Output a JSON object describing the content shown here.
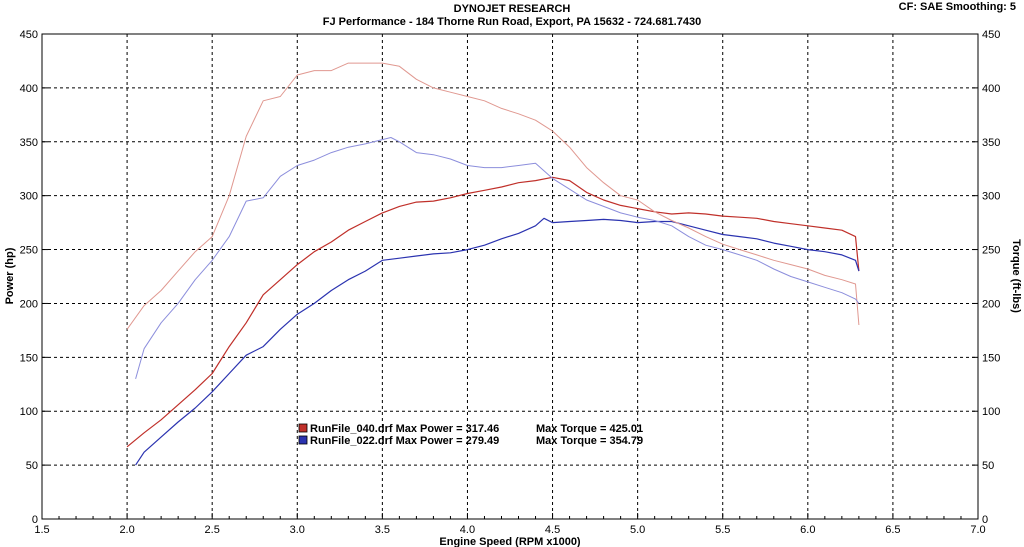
{
  "header": {
    "title": "DYNOJET RESEARCH",
    "subtitle": "FJ Performance - 184 Thorne Run Road, Export, PA  15632 - 724.681.7430",
    "cf": "CF: SAE  Smoothing: 5"
  },
  "chart_data": {
    "type": "line",
    "xlabel": "Engine Speed (RPM x1000)",
    "ylabel_left": "Power (hp)",
    "ylabel_right": "Torque (ft-lbs)",
    "xlim": [
      1.5,
      7.0
    ],
    "ylim": [
      0,
      450
    ],
    "x_ticks": [
      "1.5",
      "2.0",
      "2.5",
      "3.0",
      "3.5",
      "4.0",
      "4.5",
      "5.0",
      "5.5",
      "6.0",
      "6.5",
      "7.0"
    ],
    "y_ticks": [
      "0",
      "50",
      "100",
      "150",
      "200",
      "250",
      "300",
      "350",
      "400",
      "450"
    ],
    "grid": true,
    "legend_position": "lower-left",
    "legend": [
      {
        "label": "RunFile_040.drf Max Power = 317.46",
        "torque_label": "Max Torque = 425.01",
        "color": "#c0302a"
      },
      {
        "label": "RunFile_022.drf Max Power = 279.49",
        "torque_label": "Max Torque = 354.79",
        "color": "#2b33b0"
      }
    ],
    "series": [
      {
        "run": "RunFile_040.drf",
        "measure": "power",
        "color": "#c0302a",
        "faint": false,
        "x": [
          2.0,
          2.1,
          2.2,
          2.3,
          2.4,
          2.5,
          2.6,
          2.7,
          2.8,
          2.9,
          3.0,
          3.1,
          3.2,
          3.3,
          3.4,
          3.5,
          3.6,
          3.7,
          3.8,
          3.9,
          4.0,
          4.1,
          4.2,
          4.3,
          4.4,
          4.5,
          4.6,
          4.7,
          4.8,
          4.9,
          5.0,
          5.1,
          5.2,
          5.3,
          5.4,
          5.5,
          5.6,
          5.7,
          5.8,
          5.9,
          6.0,
          6.1,
          6.2,
          6.28,
          6.3
        ],
        "y": [
          67,
          80,
          92,
          106,
          120,
          135,
          160,
          182,
          208,
          222,
          236,
          248,
          257,
          268,
          276,
          284,
          290,
          294,
          295,
          298,
          302,
          305,
          308,
          312,
          314,
          317,
          314,
          303,
          296,
          291,
          288,
          285,
          283,
          284,
          283,
          281,
          280,
          279,
          276,
          274,
          272,
          270,
          268,
          262,
          230
        ]
      },
      {
        "run": "RunFile_022.drf",
        "measure": "power",
        "color": "#2b33b0",
        "faint": false,
        "x": [
          2.05,
          2.1,
          2.2,
          2.3,
          2.4,
          2.5,
          2.6,
          2.7,
          2.8,
          2.9,
          3.0,
          3.1,
          3.2,
          3.3,
          3.4,
          3.5,
          3.6,
          3.7,
          3.8,
          3.9,
          4.0,
          4.1,
          4.2,
          4.3,
          4.4,
          4.45,
          4.5,
          4.6,
          4.7,
          4.8,
          4.9,
          5.0,
          5.1,
          5.2,
          5.3,
          5.4,
          5.5,
          5.6,
          5.7,
          5.8,
          5.9,
          6.0,
          6.1,
          6.2,
          6.28,
          6.3
        ],
        "y": [
          50,
          62,
          76,
          90,
          103,
          118,
          135,
          152,
          160,
          176,
          190,
          200,
          212,
          222,
          230,
          240,
          242,
          244,
          246,
          247,
          250,
          254,
          260,
          265,
          272,
          279,
          275,
          276,
          277,
          278,
          277,
          275,
          276,
          276,
          272,
          268,
          264,
          262,
          260,
          256,
          253,
          250,
          248,
          245,
          240,
          230
        ]
      },
      {
        "run": "RunFile_040.drf",
        "measure": "torque",
        "color": "#e09890",
        "faint": true,
        "x": [
          2.0,
          2.1,
          2.2,
          2.3,
          2.4,
          2.5,
          2.6,
          2.7,
          2.8,
          2.9,
          3.0,
          3.1,
          3.2,
          3.3,
          3.4,
          3.5,
          3.6,
          3.7,
          3.8,
          3.9,
          4.0,
          4.1,
          4.2,
          4.3,
          4.4,
          4.5,
          4.6,
          4.7,
          4.8,
          4.9,
          5.0,
          5.1,
          5.2,
          5.3,
          5.4,
          5.5,
          5.6,
          5.7,
          5.8,
          5.9,
          6.0,
          6.1,
          6.2,
          6.28,
          6.3
        ],
        "y": [
          176,
          198,
          212,
          230,
          248,
          262,
          300,
          355,
          388,
          392,
          412,
          416,
          416,
          423,
          423,
          423,
          420,
          408,
          400,
          396,
          392,
          388,
          381,
          376,
          370,
          360,
          345,
          326,
          312,
          300,
          296,
          285,
          277,
          270,
          262,
          255,
          250,
          245,
          240,
          236,
          232,
          226,
          222,
          218,
          180
        ]
      },
      {
        "run": "RunFile_022.drf",
        "measure": "torque",
        "color": "#8c8edc",
        "faint": true,
        "x": [
          2.05,
          2.1,
          2.2,
          2.3,
          2.4,
          2.5,
          2.6,
          2.7,
          2.8,
          2.9,
          3.0,
          3.1,
          3.2,
          3.3,
          3.4,
          3.5,
          3.55,
          3.6,
          3.7,
          3.8,
          3.9,
          4.0,
          4.1,
          4.2,
          4.3,
          4.4,
          4.5,
          4.6,
          4.7,
          4.8,
          4.9,
          5.0,
          5.1,
          5.2,
          5.3,
          5.4,
          5.5,
          5.6,
          5.7,
          5.8,
          5.9,
          6.0,
          6.1,
          6.2,
          6.28,
          6.3
        ],
        "y": [
          130,
          158,
          182,
          200,
          222,
          240,
          262,
          295,
          298,
          318,
          328,
          333,
          340,
          345,
          348,
          352,
          354,
          350,
          340,
          338,
          334,
          328,
          326,
          326,
          328,
          330,
          316,
          306,
          296,
          290,
          284,
          280,
          277,
          272,
          262,
          254,
          250,
          245,
          240,
          232,
          225,
          220,
          215,
          210,
          204,
          200
        ]
      }
    ]
  }
}
